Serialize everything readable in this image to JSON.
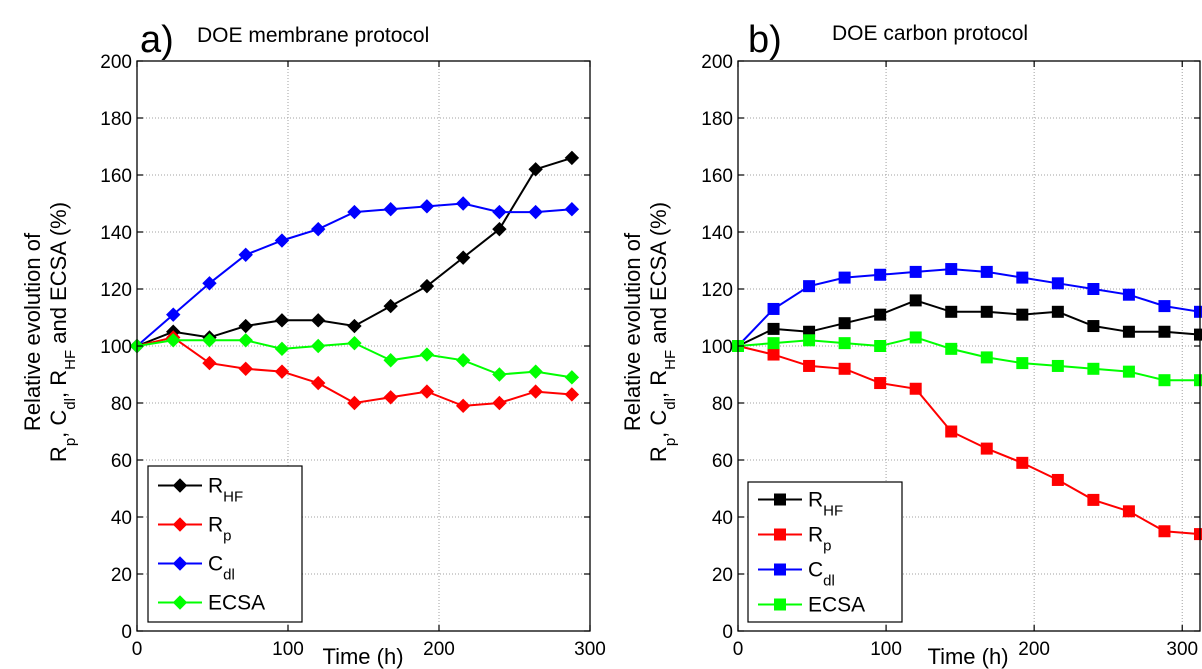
{
  "chart_data": [
    {
      "type": "line",
      "panel_label": "a)",
      "title": "DOE membrane protocol",
      "xlabel": "Time (h)",
      "ylabel_line1": "Relative evolution of",
      "ylabel_line2": "Rp, Cdl, RHF and ECSA (%)",
      "xlim": [
        0,
        300
      ],
      "ylim": [
        0,
        200
      ],
      "xticks": [
        "0",
        "100",
        "200",
        "300"
      ],
      "yticks": [
        "0",
        "20",
        "40",
        "60",
        "80",
        "100",
        "120",
        "140",
        "160",
        "180",
        "200"
      ],
      "grid": true,
      "legend_position": "lower-left",
      "marker": "diamond",
      "x": [
        0,
        24,
        48,
        72,
        96,
        120,
        144,
        168,
        192,
        216,
        240,
        264,
        288
      ],
      "series": [
        {
          "name": "R",
          "sub": "HF",
          "color": "#000000",
          "values": [
            100,
            105,
            103,
            107,
            109,
            109,
            107,
            114,
            121,
            131,
            141,
            162,
            166
          ]
        },
        {
          "name": "R",
          "sub": "p",
          "color": "#ff0000",
          "values": [
            100,
            103,
            94,
            92,
            91,
            87,
            80,
            82,
            84,
            79,
            80,
            84,
            83
          ]
        },
        {
          "name": "C",
          "sub": "dl",
          "color": "#0000ff",
          "values": [
            100,
            111,
            122,
            132,
            137,
            141,
            147,
            148,
            149,
            150,
            147,
            147,
            148
          ]
        },
        {
          "name": "ECSA",
          "sub": "",
          "color": "#00ff00",
          "values": [
            100,
            102,
            102,
            102,
            99,
            100,
            101,
            95,
            97,
            95,
            90,
            91,
            89
          ]
        }
      ]
    },
    {
      "type": "line",
      "panel_label": "b)",
      "title": "DOE carbon protocol",
      "xlabel": "Time (h)",
      "ylabel_line1": "Relative evolution of",
      "ylabel_line2": "Rp, Cdl, RHF and ECSA (%)",
      "xlim": [
        0,
        312
      ],
      "ylim": [
        0,
        200
      ],
      "xticks": [
        "0",
        "100",
        "200",
        "300"
      ],
      "yticks": [
        "0",
        "20",
        "40",
        "60",
        "80",
        "100",
        "120",
        "140",
        "160",
        "180",
        "200"
      ],
      "grid": true,
      "legend_position": "lower-left",
      "marker": "square",
      "x": [
        0,
        24,
        48,
        72,
        96,
        120,
        144,
        168,
        192,
        216,
        240,
        264,
        288,
        312
      ],
      "series": [
        {
          "name": "R",
          "sub": "HF",
          "color": "#000000",
          "values": [
            100,
            106,
            105,
            108,
            111,
            116,
            112,
            112,
            111,
            112,
            107,
            105,
            105,
            104
          ]
        },
        {
          "name": "R",
          "sub": "p",
          "color": "#ff0000",
          "values": [
            100,
            97,
            93,
            92,
            87,
            85,
            70,
            64,
            59,
            53,
            46,
            42,
            35,
            34
          ]
        },
        {
          "name": "C",
          "sub": "dl",
          "color": "#0000ff",
          "values": [
            100,
            113,
            121,
            124,
            125,
            126,
            127,
            126,
            124,
            122,
            120,
            118,
            114,
            112
          ]
        },
        {
          "name": "ECSA",
          "sub": "",
          "color": "#00ff00",
          "values": [
            100,
            101,
            102,
            101,
            100,
            103,
            99,
            96,
            94,
            93,
            92,
            91,
            88,
            88
          ]
        }
      ]
    }
  ]
}
